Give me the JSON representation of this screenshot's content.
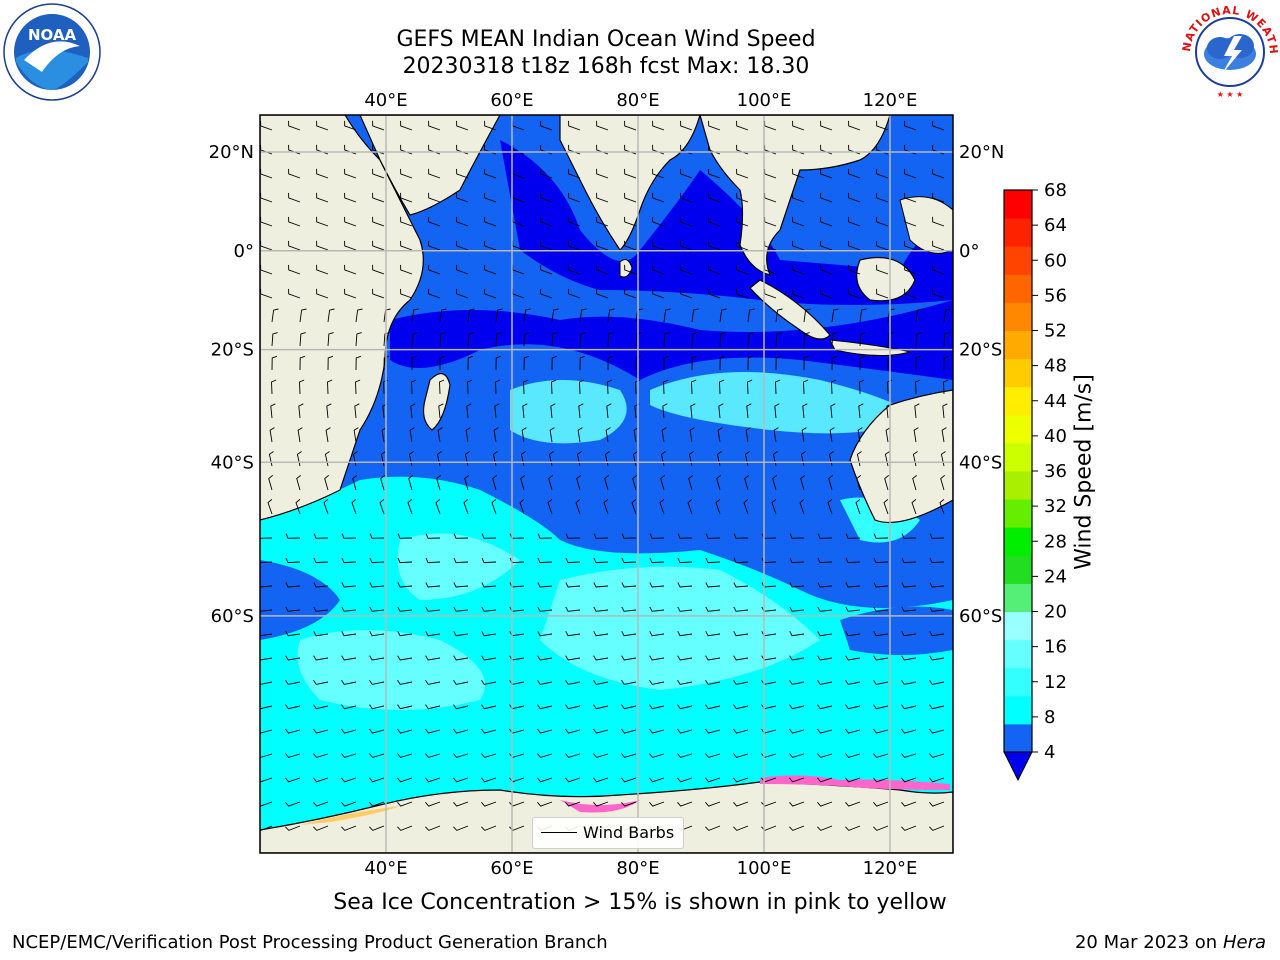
{
  "title": {
    "line1": "GEFS MEAN Indian Ocean Wind Speed",
    "line2": "20230318 t18z 168h fcst   Max: 18.30"
  },
  "map": {
    "lon_range": [
      20,
      130
    ],
    "lat_range": [
      -77,
      27
    ],
    "top_lon_labels": [
      "40°E",
      "60°E",
      "80°E",
      "100°E",
      "120°E"
    ],
    "bottom_lon_labels": [
      "40°E",
      "60°E",
      "80°E",
      "100°E",
      "120°E"
    ],
    "left_lat_labels": [
      "20°N",
      "0°",
      "20°S",
      "40°S",
      "60°S"
    ],
    "right_lat_labels": [
      "20°N",
      "0°",
      "20°S",
      "40°S",
      "60°S"
    ],
    "grid": true,
    "land_color": "#efefdf",
    "legend": {
      "label": "Wind Barbs",
      "placement": "bottom-center"
    }
  },
  "colorbar": {
    "label": "Wind Speed [m/s]",
    "ticks": [
      "4",
      "8",
      "12",
      "16",
      "20",
      "24",
      "28",
      "32",
      "36",
      "40",
      "44",
      "48",
      "52",
      "56",
      "60",
      "64",
      "68"
    ],
    "colors": [
      "#1464f4",
      "#00ffff",
      "#33ffff",
      "#66ffff",
      "#99ffff",
      "#55ee77",
      "#22dd22",
      "#00ee00",
      "#66ee00",
      "#aaee00",
      "#ccff00",
      "#eeff00",
      "#ffee00",
      "#ffcc00",
      "#ffaa00",
      "#ff8800",
      "#ff6600",
      "#ff4400",
      "#ff2200",
      "#ff0000"
    ],
    "extend_color": "#0000ee"
  },
  "notes": {
    "sea_ice": "Sea Ice Concentration > 15% is shown in pink to yellow"
  },
  "footer": {
    "left": "NCEP/EMC/Verification Post Processing Product Generation Branch",
    "date": "20 Mar 2023 on",
    "machine": "Hera"
  },
  "logos": {
    "noaa": "NOAA",
    "nws": "NATIONAL WEATHER SERVICE"
  }
}
